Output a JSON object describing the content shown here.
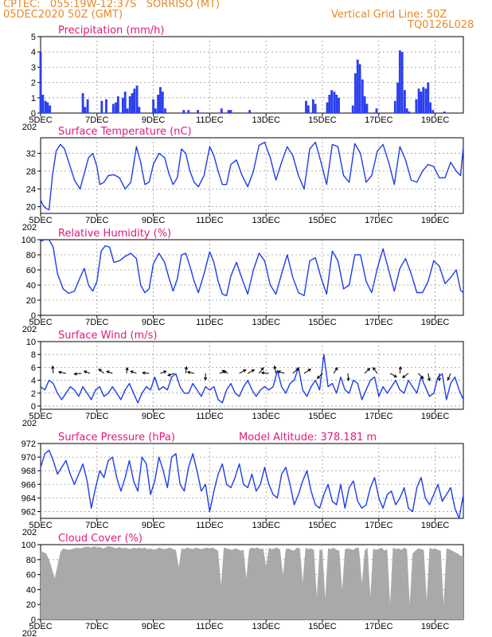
{
  "header": {
    "line1": "CPTEC:   055:19W-12:37S   SORRISO (MT)",
    "line2": "05DEC2020 50Z (GMT)",
    "grid_note": "Vertical Grid Line: 50Z",
    "model_id": "TQ0126L028"
  },
  "x_axis": {
    "ticks": [
      "5DEC",
      "7DEC",
      "9DEC",
      "11DEC",
      "13DEC",
      "15DEC",
      "17DEC",
      "19DEC"
    ],
    "tick_days": [
      0,
      2,
      4,
      6,
      8,
      10,
      12,
      14
    ],
    "year_stub": "202",
    "range_days": [
      0,
      15
    ]
  },
  "chart_data": [
    {
      "type": "bar",
      "title": "Precipitation (mm/h)",
      "ylim": [
        0,
        5
      ],
      "yticks": [
        "0",
        "1",
        "2",
        "3",
        "4",
        "5"
      ],
      "bar_color": "#2a3ff0",
      "x": [
        0.0,
        0.08,
        0.17,
        0.25,
        0.33,
        1.5,
        1.58,
        1.67,
        2.17,
        2.33,
        2.58,
        2.67,
        2.75,
        2.92,
        3.0,
        3.08,
        3.17,
        3.25,
        3.33,
        3.42,
        3.5,
        4.0,
        4.08,
        4.17,
        4.25,
        4.33,
        4.42,
        5.08,
        5.25,
        5.58,
        6.42,
        6.67,
        6.75,
        7.42,
        9.42,
        9.5,
        9.67,
        9.75,
        10.17,
        10.25,
        10.33,
        10.42,
        10.5,
        10.58,
        11.08,
        11.17,
        11.25,
        11.33,
        11.42,
        11.5,
        11.58,
        11.92,
        12.58,
        12.67,
        12.75,
        12.83,
        12.92,
        13.0,
        13.08,
        13.33,
        13.42,
        13.5,
        13.58,
        13.67,
        13.75,
        13.83,
        13.92,
        14.33
      ],
      "values": [
        4.0,
        1.2,
        0.8,
        0.7,
        0.5,
        1.3,
        0.4,
        0.9,
        0.8,
        0.9,
        0.6,
        0.7,
        1.1,
        1.0,
        1.4,
        0.3,
        1.1,
        1.3,
        1.6,
        1.8,
        0.4,
        0.9,
        0.3,
        1.2,
        1.7,
        1.4,
        0.3,
        0.2,
        0.2,
        0.2,
        0.3,
        0.2,
        0.2,
        0.2,
        0.8,
        0.5,
        0.9,
        0.6,
        0.7,
        1.2,
        1.5,
        1.4,
        1.2,
        1.0,
        0.5,
        2.6,
        3.5,
        3.2,
        2.2,
        1.1,
        0.6,
        0.3,
        0.8,
        2.0,
        4.1,
        4.0,
        1.5,
        0.3,
        0.1,
        0.9,
        1.6,
        1.4,
        1.7,
        1.6,
        2.0,
        0.7,
        0.2,
        0.1
      ]
    },
    {
      "type": "line",
      "title": "Surface Temperature (nC)",
      "ylim": [
        18.5,
        35.5
      ],
      "yticks": [
        "20",
        "24",
        "28",
        "32"
      ],
      "line_color": "#1f3ee8",
      "x": [
        0.0,
        0.1,
        0.2,
        0.3,
        0.42,
        0.55,
        0.7,
        0.85,
        1.0,
        1.2,
        1.4,
        1.55,
        1.7,
        1.85,
        2.0,
        2.1,
        2.25,
        2.4,
        2.6,
        2.8,
        3.0,
        3.2,
        3.4,
        3.55,
        3.7,
        3.85,
        4.0,
        4.2,
        4.4,
        4.55,
        4.7,
        4.85,
        5.0,
        5.15,
        5.3,
        5.45,
        5.6,
        5.8,
        6.0,
        6.15,
        6.3,
        6.45,
        6.6,
        6.75,
        6.95,
        7.15,
        7.35,
        7.55,
        7.75,
        7.95,
        8.15,
        8.35,
        8.55,
        8.75,
        8.95,
        9.15,
        9.35,
        9.55,
        9.75,
        9.95,
        10.15,
        10.35,
        10.55,
        10.75,
        10.95,
        11.15,
        11.35,
        11.55,
        11.75,
        11.95,
        12.15,
        12.35,
        12.55,
        12.75,
        12.95,
        13.15,
        13.35,
        13.55,
        13.75,
        13.95,
        14.15,
        14.35,
        14.55,
        14.75,
        14.9,
        15.0
      ],
      "values": [
        21.5,
        20.2,
        19.6,
        19.3,
        27.0,
        32.5,
        34.0,
        33.0,
        30.0,
        26.0,
        24.0,
        27.5,
        31.0,
        32.0,
        29.0,
        25.0,
        25.5,
        27.0,
        27.2,
        26.5,
        24.0,
        25.5,
        33.5,
        30.0,
        25.0,
        25.5,
        29.5,
        32.0,
        31.0,
        27.5,
        25.0,
        26.5,
        33.0,
        32.0,
        28.0,
        25.5,
        24.5,
        27.0,
        33.5,
        31.5,
        28.0,
        25.0,
        25.0,
        29.5,
        30.5,
        27.0,
        24.5,
        28.0,
        33.8,
        34.5,
        31.0,
        26.0,
        30.0,
        33.5,
        31.5,
        27.0,
        24.0,
        33.0,
        34.5,
        30.0,
        25.0,
        34.0,
        33.5,
        27.0,
        25.5,
        34.2,
        32.0,
        25.5,
        27.0,
        32.5,
        34.0,
        30.0,
        25.0,
        33.5,
        30.5,
        26.0,
        25.5,
        28.0,
        29.5,
        29.0,
        26.5,
        26.5,
        30.0,
        28.0,
        27.0,
        33.5
      ]
    },
    {
      "type": "line",
      "title": "Relative Humidity (%)",
      "ylim": [
        0,
        100
      ],
      "yticks": [
        "0",
        "20",
        "40",
        "60",
        "80",
        "100"
      ],
      "line_color": "#1f3ee8",
      "x": [
        0.0,
        0.15,
        0.3,
        0.45,
        0.6,
        0.8,
        1.0,
        1.2,
        1.4,
        1.55,
        1.7,
        1.85,
        2.0,
        2.15,
        2.3,
        2.45,
        2.6,
        2.8,
        3.0,
        3.2,
        3.4,
        3.55,
        3.7,
        3.85,
        4.0,
        4.2,
        4.4,
        4.55,
        4.7,
        4.85,
        5.0,
        5.15,
        5.3,
        5.45,
        5.6,
        5.8,
        6.0,
        6.15,
        6.3,
        6.45,
        6.6,
        6.75,
        6.95,
        7.15,
        7.35,
        7.55,
        7.75,
        7.95,
        8.15,
        8.35,
        8.55,
        8.75,
        8.95,
        9.15,
        9.35,
        9.55,
        9.75,
        9.95,
        10.15,
        10.35,
        10.55,
        10.75,
        10.95,
        11.15,
        11.35,
        11.55,
        11.75,
        11.95,
        12.15,
        12.35,
        12.55,
        12.75,
        12.95,
        13.15,
        13.35,
        13.55,
        13.75,
        13.95,
        14.15,
        14.35,
        14.55,
        14.75,
        14.9,
        15.0
      ],
      "values": [
        98,
        100,
        100,
        90,
        55,
        35,
        29,
        32,
        50,
        62,
        40,
        32,
        45,
        85,
        92,
        90,
        70,
        72,
        78,
        82,
        75,
        40,
        30,
        35,
        68,
        82,
        70,
        50,
        32,
        48,
        80,
        82,
        65,
        45,
        30,
        55,
        84,
        70,
        45,
        28,
        26,
        52,
        70,
        48,
        28,
        60,
        82,
        72,
        40,
        28,
        55,
        80,
        50,
        30,
        26,
        72,
        76,
        50,
        28,
        85,
        72,
        35,
        40,
        80,
        80,
        45,
        30,
        62,
        88,
        60,
        32,
        62,
        75,
        55,
        30,
        30,
        45,
        72,
        65,
        42,
        50,
        60,
        33,
        30
      ]
    },
    {
      "type": "line",
      "title": "Surface Wind (m/s)",
      "ylim": [
        -0.5,
        10
      ],
      "yticks": [
        "0",
        "2",
        "4",
        "6",
        "8",
        "10"
      ],
      "line_color": "#1f3ee8",
      "x": [
        0.0,
        0.15,
        0.3,
        0.45,
        0.6,
        0.75,
        0.9,
        1.05,
        1.2,
        1.35,
        1.5,
        1.65,
        1.8,
        1.95,
        2.1,
        2.25,
        2.4,
        2.55,
        2.7,
        2.85,
        3.0,
        3.15,
        3.3,
        3.45,
        3.6,
        3.75,
        3.9,
        4.05,
        4.2,
        4.35,
        4.5,
        4.65,
        4.8,
        4.95,
        5.1,
        5.25,
        5.4,
        5.55,
        5.7,
        5.85,
        6.0,
        6.15,
        6.3,
        6.45,
        6.6,
        6.75,
        6.9,
        7.05,
        7.2,
        7.35,
        7.5,
        7.65,
        7.8,
        7.95,
        8.1,
        8.25,
        8.4,
        8.55,
        8.7,
        8.85,
        9.0,
        9.15,
        9.3,
        9.45,
        9.6,
        9.75,
        9.9,
        10.05,
        10.2,
        10.35,
        10.5,
        10.65,
        10.8,
        10.95,
        11.1,
        11.25,
        11.4,
        11.55,
        11.7,
        11.85,
        12.0,
        12.15,
        12.3,
        12.45,
        12.6,
        12.75,
        12.9,
        13.05,
        13.2,
        13.35,
        13.5,
        13.65,
        13.8,
        13.95,
        14.1,
        14.25,
        14.4,
        14.55,
        14.7,
        14.85,
        15.0
      ],
      "values": [
        3.0,
        2.5,
        4.0,
        3.5,
        2.0,
        1.0,
        2.0,
        3.0,
        2.5,
        1.5,
        3.0,
        2.0,
        1.0,
        2.5,
        3.0,
        1.5,
        2.0,
        3.0,
        2.0,
        1.0,
        2.5,
        3.5,
        2.0,
        0.5,
        2.0,
        3.0,
        2.5,
        4.5,
        2.5,
        3.0,
        2.5,
        4.5,
        5.0,
        3.0,
        2.0,
        2.0,
        3.5,
        2.5,
        1.5,
        3.0,
        2.5,
        3.0,
        1.0,
        0.5,
        2.5,
        3.5,
        2.0,
        1.5,
        3.0,
        4.0,
        2.5,
        1.5,
        2.5,
        3.0,
        2.5,
        3.0,
        5.5,
        3.0,
        2.0,
        3.5,
        4.0,
        6.0,
        2.5,
        1.5,
        3.0,
        4.0,
        2.5,
        8.0,
        3.0,
        3.5,
        2.0,
        4.5,
        2.5,
        2.0,
        4.0,
        3.5,
        1.0,
        2.5,
        4.0,
        4.5,
        1.5,
        3.0,
        2.0,
        3.0,
        4.0,
        2.5,
        2.0,
        4.0,
        3.0,
        2.0,
        4.5,
        3.0,
        1.5,
        2.0,
        4.5,
        5.0,
        1.0,
        3.5,
        4.5,
        2.5,
        1.0
      ],
      "arrows_x": [
        0.45,
        0.9,
        1.45,
        1.75,
        2.25,
        2.55,
        3.05,
        3.4,
        3.85,
        4.25,
        4.75,
        5.15,
        5.45,
        5.85,
        6.35,
        6.65,
        7.05,
        7.35,
        7.75,
        8.1,
        8.35,
        8.65,
        8.95,
        9.35,
        10.0,
        10.4,
        10.9,
        11.5,
        11.95,
        12.4,
        12.75,
        13.05,
        13.4,
        13.75,
        14.15,
        14.55
      ],
      "arrows_u": [
        -0.1,
        -1.0,
        -1.0,
        -0.8,
        -0.7,
        -0.8,
        0.1,
        -0.8,
        -0.9,
        0.8,
        -0.9,
        0.1,
        -0.9,
        0.0,
        0.9,
        -0.8,
        0.9,
        0.9,
        0.6,
        -1.0,
        -0.2,
        -0.9,
        0.8,
        0.9,
        -0.7,
        0.5,
        0.1,
        0.7,
        -0.6,
        0.9,
        0.1,
        -0.8,
        0.7,
        0.2,
        0.0,
        -0.4
      ],
      "arrows_v": [
        1.0,
        0.2,
        -0.1,
        0.3,
        0.6,
        0.3,
        0.8,
        0.3,
        0.1,
        0.3,
        -0.3,
        0.9,
        0.2,
        -0.9,
        0.3,
        0.4,
        0.5,
        0.5,
        0.8,
        0.1,
        1.0,
        0.3,
        0.7,
        0.6,
        -0.7,
        0.8,
        -1.0,
        0.7,
        0.8,
        -0.5,
        0.9,
        -0.6,
        -0.7,
        -1.0,
        -1.0,
        -0.9
      ]
    },
    {
      "type": "line",
      "title": "Surface Pressure (hPa)",
      "subtitle": "Model Altitude: 378.181 m",
      "ylim": [
        961,
        972
      ],
      "yticks": [
        "962",
        "964",
        "966",
        "968",
        "970",
        "972"
      ],
      "line_color": "#1f3ee8",
      "x": [
        0.0,
        0.15,
        0.3,
        0.45,
        0.6,
        0.75,
        0.9,
        1.05,
        1.2,
        1.35,
        1.5,
        1.65,
        1.8,
        1.95,
        2.1,
        2.25,
        2.4,
        2.55,
        2.7,
        2.85,
        3.0,
        3.15,
        3.3,
        3.45,
        3.6,
        3.75,
        3.9,
        4.05,
        4.2,
        4.35,
        4.5,
        4.65,
        4.8,
        4.95,
        5.1,
        5.25,
        5.4,
        5.55,
        5.7,
        5.85,
        6.0,
        6.15,
        6.3,
        6.45,
        6.6,
        6.75,
        6.9,
        7.05,
        7.2,
        7.35,
        7.5,
        7.65,
        7.8,
        7.95,
        8.1,
        8.25,
        8.4,
        8.55,
        8.7,
        8.85,
        9.0,
        9.15,
        9.3,
        9.45,
        9.6,
        9.75,
        9.9,
        10.05,
        10.2,
        10.35,
        10.5,
        10.65,
        10.8,
        10.95,
        11.1,
        11.25,
        11.4,
        11.55,
        11.7,
        11.85,
        12.0,
        12.15,
        12.3,
        12.45,
        12.6,
        12.75,
        12.9,
        13.05,
        13.2,
        13.35,
        13.5,
        13.65,
        13.8,
        13.95,
        14.1,
        14.25,
        14.4,
        14.55,
        14.7,
        14.85,
        15.0
      ],
      "values": [
        968.5,
        970.5,
        971.0,
        969.5,
        967.5,
        968.5,
        969.5,
        967.5,
        966.0,
        967.5,
        969.0,
        966.5,
        962.5,
        965.5,
        968.0,
        967.0,
        969.5,
        970.0,
        967.0,
        965.0,
        967.0,
        969.5,
        966.5,
        965.0,
        970.0,
        969.0,
        964.5,
        966.5,
        970.0,
        968.0,
        965.5,
        970.0,
        970.5,
        966.0,
        965.0,
        968.5,
        970.5,
        968.0,
        965.0,
        966.0,
        962.0,
        965.0,
        967.5,
        969.0,
        966.0,
        965.5,
        967.0,
        969.0,
        966.0,
        965.5,
        967.5,
        965.0,
        966.0,
        968.5,
        966.0,
        964.5,
        964.0,
        967.5,
        968.5,
        966.0,
        963.0,
        964.5,
        966.5,
        968.0,
        965.0,
        963.0,
        962.5,
        964.5,
        966.0,
        963.5,
        963.0,
        966.0,
        962.5,
        965.5,
        966.5,
        963.5,
        962.5,
        963.0,
        965.5,
        967.0,
        964.0,
        962.5,
        964.5,
        965.0,
        963.0,
        964.0,
        965.5,
        962.5,
        962.0,
        965.5,
        967.0,
        964.0,
        963.0,
        964.5,
        966.0,
        963.5,
        964.5,
        965.5,
        962.5,
        961.0,
        964.5
      ]
    },
    {
      "type": "area",
      "title": "Cloud Cover (%)",
      "ylim": [
        0,
        100
      ],
      "yticks": [
        "0",
        "20",
        "40",
        "60",
        "80",
        "100"
      ],
      "fill_color": "#a9a9a9",
      "x": [
        0.0,
        0.1,
        0.2,
        0.3,
        0.4,
        0.5,
        0.6,
        0.7,
        0.8,
        0.9,
        1.0,
        1.1,
        1.2,
        1.3,
        1.4,
        1.5,
        1.6,
        1.7,
        1.8,
        1.9,
        2.0,
        2.1,
        2.2,
        2.3,
        2.4,
        2.5,
        2.6,
        2.7,
        2.8,
        2.9,
        3.0,
        3.1,
        3.2,
        3.3,
        3.4,
        3.5,
        3.6,
        3.7,
        3.8,
        3.9,
        4.0,
        4.1,
        4.2,
        4.3,
        4.4,
        4.5,
        4.6,
        4.7,
        4.8,
        4.9,
        5.0,
        5.1,
        5.2,
        5.3,
        5.4,
        5.5,
        5.6,
        5.7,
        5.8,
        5.9,
        6.0,
        6.1,
        6.2,
        6.3,
        6.4,
        6.5,
        6.6,
        6.7,
        6.8,
        6.9,
        7.0,
        7.1,
        7.2,
        7.3,
        7.4,
        7.5,
        7.6,
        7.7,
        7.8,
        7.9,
        8.0,
        8.1,
        8.2,
        8.3,
        8.4,
        8.5,
        8.6,
        8.7,
        8.8,
        8.9,
        9.0,
        9.1,
        9.2,
        9.3,
        9.4,
        9.5,
        9.6,
        9.7,
        9.8,
        9.9,
        10.0,
        10.1,
        10.2,
        10.3,
        10.4,
        10.5,
        10.6,
        10.7,
        10.8,
        10.9,
        11.0,
        11.1,
        11.2,
        11.3,
        11.4,
        11.5,
        11.6,
        11.7,
        11.8,
        11.9,
        12.0,
        12.1,
        12.2,
        12.3,
        12.4,
        12.5,
        12.6,
        12.7,
        12.8,
        12.9,
        13.0,
        13.1,
        13.2,
        13.3,
        13.4,
        13.5,
        13.6,
        13.7,
        13.8,
        13.9,
        14.0,
        14.1,
        14.2,
        14.3,
        14.4,
        14.5,
        14.6,
        14.7,
        14.8,
        14.9,
        15.0
      ],
      "values": [
        92,
        90,
        88,
        80,
        68,
        55,
        72,
        90,
        95,
        94,
        93,
        94,
        95,
        96,
        95,
        96,
        97,
        97,
        96,
        98,
        96,
        97,
        95,
        96,
        98,
        97,
        96,
        95,
        97,
        95,
        96,
        95,
        94,
        96,
        95,
        96,
        95,
        96,
        94,
        95,
        93,
        94,
        96,
        95,
        94,
        95,
        96,
        94,
        93,
        70,
        95,
        94,
        96,
        95,
        94,
        96,
        95,
        94,
        95,
        96,
        95,
        96,
        94,
        92,
        45,
        96,
        95,
        94,
        93,
        95,
        94,
        92,
        93,
        55,
        94,
        96,
        95,
        96,
        94,
        95,
        70,
        96,
        94,
        95,
        96,
        93,
        60,
        94,
        95,
        93,
        92,
        96,
        95,
        50,
        96,
        94,
        95,
        93,
        30,
        94,
        92,
        28,
        95,
        94,
        96,
        93,
        92,
        40,
        94,
        95,
        94,
        93,
        96,
        95,
        48,
        92,
        96,
        30,
        95,
        93,
        94,
        96,
        92,
        94,
        20,
        96,
        94,
        95,
        93,
        96,
        94,
        20,
        88,
        92,
        95,
        94,
        93,
        25,
        96,
        94,
        95,
        93,
        92,
        20,
        95,
        94,
        92,
        90,
        88,
        85,
        85
      ]
    }
  ]
}
